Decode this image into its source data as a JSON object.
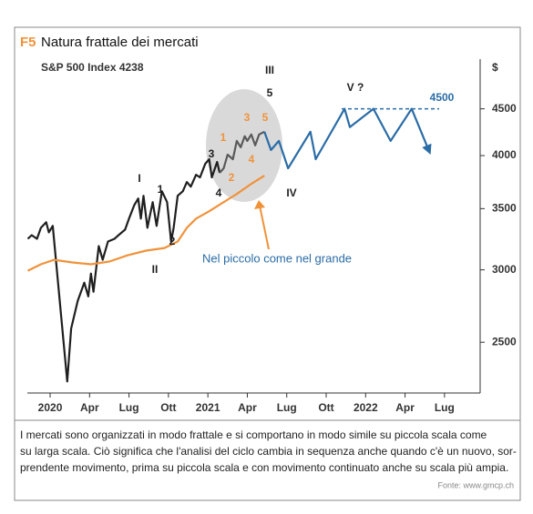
{
  "chart_data": {
    "type": "line",
    "title_tag": "F5",
    "title": "Natura frattale dei mercati",
    "subtitle": "S&P 500 Index 4238",
    "y_label": "$",
    "log_scale": true,
    "xlim": [
      -1.7,
      32.2
    ],
    "xticks": [
      {
        "value": 0,
        "label": "2020"
      },
      {
        "value": 3,
        "label": "Apr"
      },
      {
        "value": 6,
        "label": "Lug"
      },
      {
        "value": 9,
        "label": "Ott"
      },
      {
        "value": 12,
        "label": "2021"
      },
      {
        "value": 15,
        "label": "Apr"
      },
      {
        "value": 18,
        "label": "Lug"
      },
      {
        "value": 21,
        "label": "Ott"
      },
      {
        "value": 24,
        "label": "2022"
      },
      {
        "value": 27,
        "label": "Apr"
      },
      {
        "value": 30,
        "label": "Lug"
      }
    ],
    "ylim": [
      2200,
      5100
    ],
    "yticks": [
      2500,
      3000,
      3500,
      4000,
      4500
    ],
    "series": [
      {
        "color": "#1f1f1f",
        "x": [
          -1.7,
          -1.4,
          -1.0,
          -0.7,
          -0.3,
          -0.1,
          0.2,
          1.3,
          1.6,
          2.1,
          2.6,
          2.9,
          3.1,
          3.3,
          3.7,
          4.0,
          4.4,
          4.9,
          5.2,
          5.7,
          6.0,
          6.4,
          6.7,
          6.9,
          7.1,
          7.4,
          7.8,
          8.1,
          8.5,
          8.9,
          9.2,
          9.4,
          9.7,
          10.1,
          10.4,
          10.7,
          11.1,
          11.4,
          11.8,
          12.1,
          12.3,
          12.7,
          12.9
        ],
        "values": [
          3244,
          3274,
          3244,
          3335,
          3382,
          3297,
          3351,
          2265,
          2588,
          2774,
          2905,
          2806,
          2972,
          2839,
          3185,
          3077,
          3222,
          3244,
          3274,
          3320,
          3413,
          3532,
          3590,
          3413,
          3615,
          3335,
          3558,
          3351,
          3657,
          3558,
          3222,
          3335,
          3615,
          3657,
          3742,
          3699,
          3812,
          3786,
          3919,
          3964,
          3786,
          3937,
          3830
        ]
      },
      {
        "color": "#5a5a5a",
        "x": [
          12.9,
          13.2,
          13.5,
          13.9,
          14.2,
          14.5,
          14.8,
          15.0,
          15.3,
          15.6,
          15.9,
          16.3
        ],
        "values": [
          3830,
          3874,
          4010,
          3964,
          4151,
          4085,
          4200,
          4151,
          4219,
          4104,
          4219,
          4248
        ]
      },
      {
        "color": "#f0923a",
        "x": [
          -1.7,
          -0.7,
          0.3,
          1.7,
          3.1,
          4.5,
          5.9,
          7.3,
          8.7,
          9.7,
          10.4,
          11.1,
          12.1,
          13.2,
          14.2,
          15.2,
          16.3
        ],
        "values": [
          2993,
          3042,
          3077,
          3056,
          3042,
          3063,
          3112,
          3149,
          3170,
          3222,
          3335,
          3413,
          3477,
          3558,
          3632,
          3717,
          3803
        ]
      },
      {
        "color": "#2a6ca6",
        "arrow": true,
        "x": [
          16.3,
          16.8,
          17.4,
          18.1,
          19.8,
          20.2,
          22.4,
          22.8,
          24.6,
          25.9,
          27.5,
          28.8
        ],
        "values": [
          4248,
          4057,
          4151,
          3874,
          4248,
          3964,
          4500,
          4298,
          4500,
          4151,
          4500,
          4057
        ]
      }
    ],
    "reference_line": 4500,
    "reference_color": "#2a6ca6",
    "annotations": [
      {
        "text": "I",
        "color": "#1f1f1f"
      },
      {
        "text": "1",
        "color": "#1f1f1f"
      },
      {
        "text": "2",
        "color": "#1f1f1f"
      },
      {
        "text": "II",
        "color": "#1f1f1f"
      },
      {
        "text": "3",
        "color": "#1f1f1f"
      },
      {
        "text": "4",
        "color": "#1f1f1f"
      },
      {
        "text": "III",
        "color": "#1f1f1f"
      },
      {
        "text": "5",
        "color": "#1f1f1f"
      },
      {
        "text": "IV",
        "color": "#1f1f1f"
      },
      {
        "text": "V ?",
        "color": "#1f1f1f"
      },
      {
        "text": "1",
        "color": "#f0923a"
      },
      {
        "text": "2",
        "color": "#f0923a"
      },
      {
        "text": "3",
        "color": "#f0923a"
      },
      {
        "text": "4",
        "color": "#f0923a"
      },
      {
        "text": "5",
        "color": "#f0923a"
      },
      {
        "text": "Nel piccolo come nel grande",
        "color": "#2a6ca6"
      }
    ],
    "caption_lines": [
      "I mercati sono organizzati in modo frattale e si comportano in modo simile su piccola scala come",
      "su larga scala. Ciò significa che l'analisi del ciclo cambia in sequenza anche quando c'è un nuovo, sor-",
      "prendente movimento, prima su piccola scala e con movimento continuato anche su scala più ampia."
    ],
    "source": "Fonte: www.gmcp.ch"
  }
}
